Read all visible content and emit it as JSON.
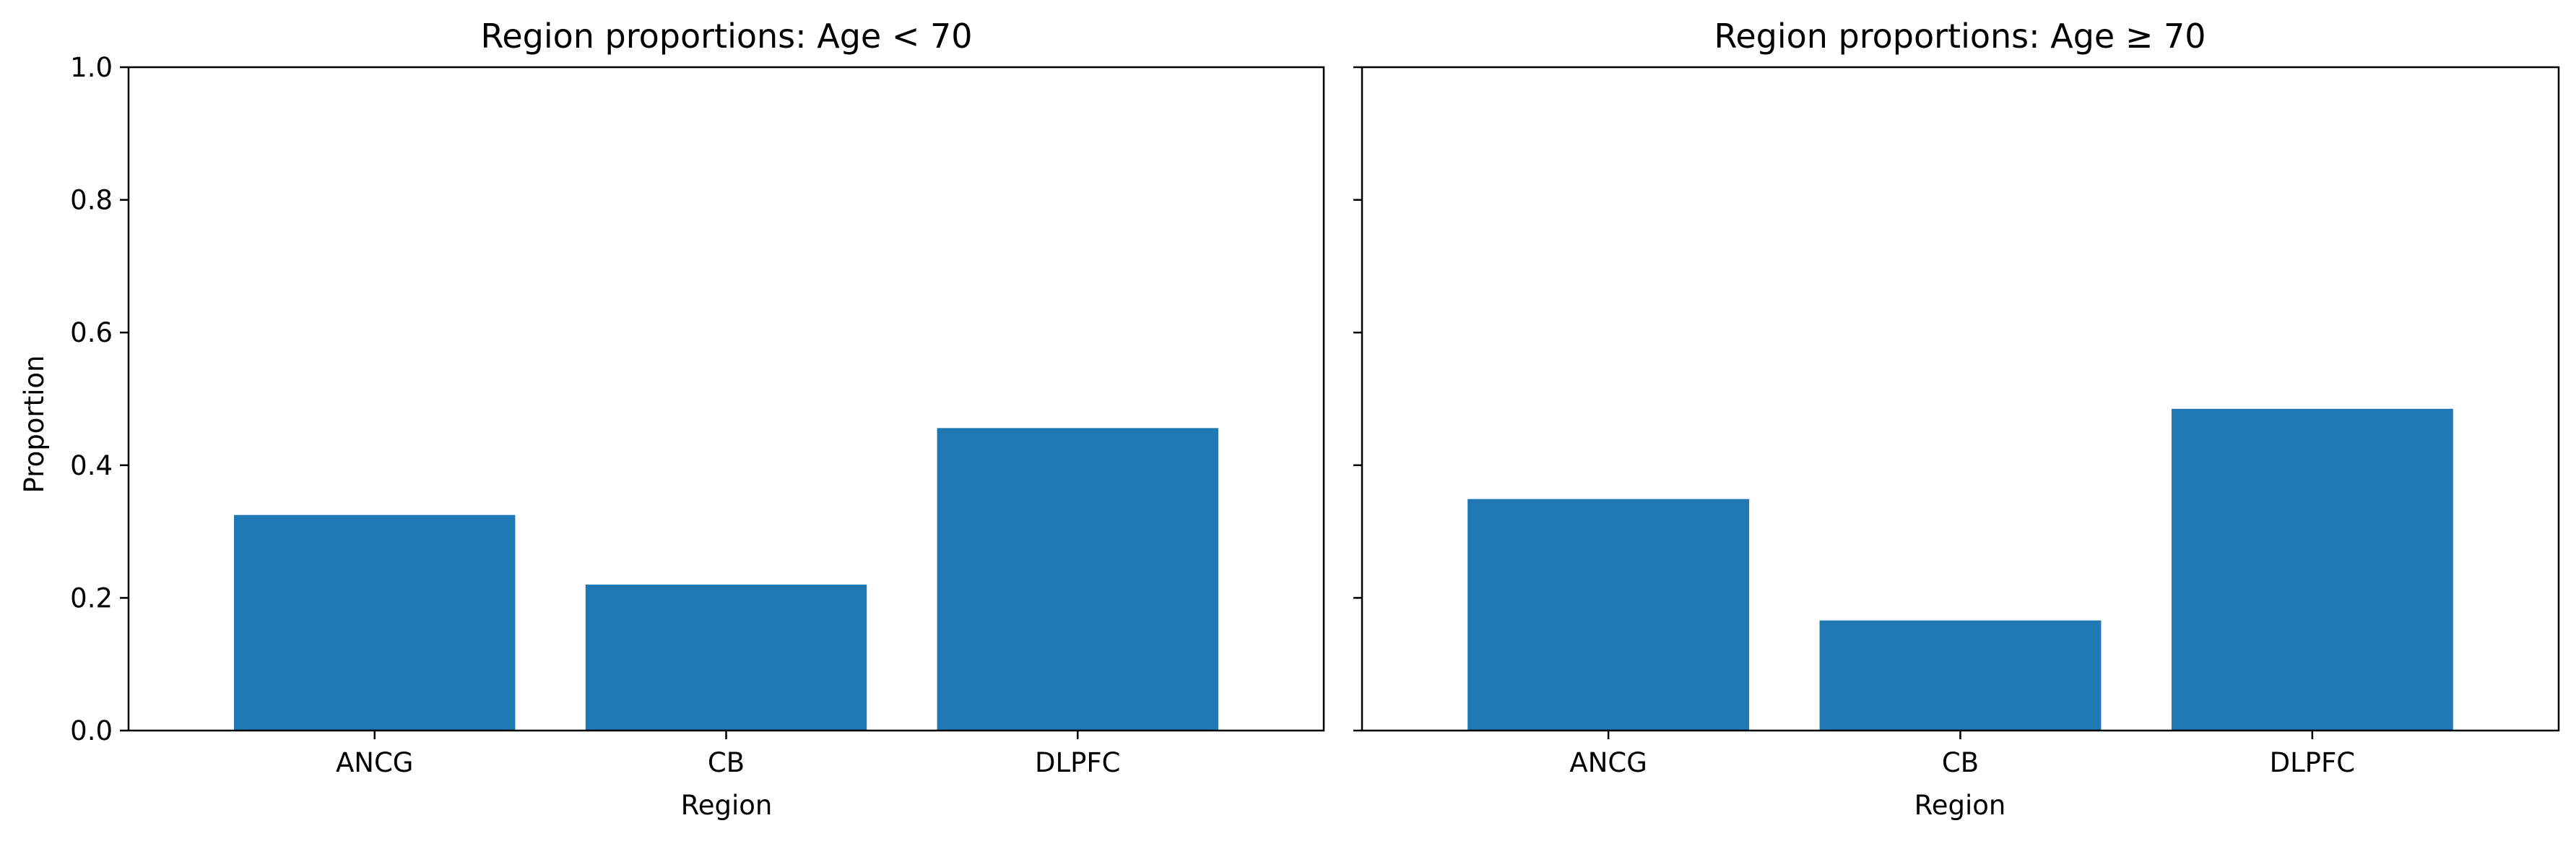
{
  "chart_data": [
    {
      "type": "bar",
      "title": "Region proportions: Age < 70",
      "xlabel": "Region",
      "ylabel": "Proportion",
      "categories": [
        "ANCG",
        "CB",
        "DLPFC"
      ],
      "values": [
        0.325,
        0.22,
        0.456
      ],
      "ylim": [
        0,
        1.0
      ],
      "yticks": [
        "0.0",
        "0.2",
        "0.4",
        "0.6",
        "0.8",
        "1.0"
      ],
      "show_y_tick_labels": true,
      "grid": false,
      "bar_color": "#1f77b4"
    },
    {
      "type": "bar",
      "title": "Region proportions: Age ≥ 70",
      "xlabel": "Region",
      "ylabel": "",
      "categories": [
        "ANCG",
        "CB",
        "DLPFC"
      ],
      "values": [
        0.349,
        0.166,
        0.485
      ],
      "ylim": [
        0,
        1.0
      ],
      "yticks": [
        "0.0",
        "0.2",
        "0.4",
        "0.6",
        "0.8",
        "1.0"
      ],
      "show_y_tick_labels": false,
      "grid": false,
      "bar_color": "#1f77b4"
    }
  ]
}
